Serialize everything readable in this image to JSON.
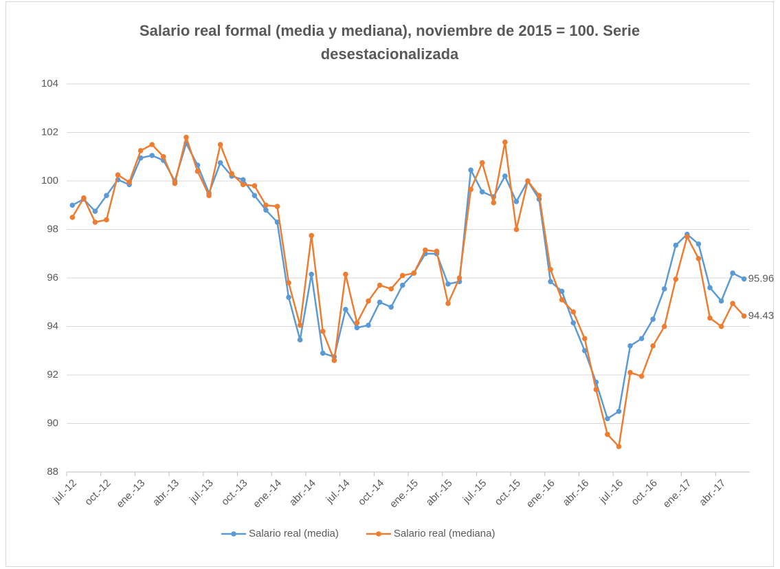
{
  "chart_data": {
    "type": "line",
    "title": "Salario real formal (media y mediana), noviembre de 2015 = 100. Serie desestacionalizada",
    "categories": [
      "jul.-12",
      null,
      null,
      "oct.-12",
      null,
      null,
      "ene.-13",
      null,
      null,
      "abr.-13",
      null,
      null,
      "jul.-13",
      null,
      null,
      "oct.-13",
      null,
      null,
      "ene.-14",
      null,
      null,
      "abr.-14",
      null,
      null,
      "jul.-14",
      null,
      null,
      "oct.-14",
      null,
      null,
      "ene.-15",
      null,
      null,
      "abr.-15",
      null,
      null,
      "jul.-15",
      null,
      null,
      "oct.-15",
      null,
      null,
      "ene.-16",
      null,
      null,
      "abr.-16",
      null,
      null,
      "jul.-16",
      null,
      null,
      "oct.-16",
      null,
      null,
      "ene.-17",
      null,
      null,
      "abr.-17",
      null,
      null
    ],
    "series": [
      {
        "name": "Salario real (media)",
        "color": "#5b9bd5",
        "values": [
          99.0,
          99.25,
          98.75,
          99.4,
          100.05,
          99.85,
          100.95,
          101.05,
          100.85,
          100.0,
          101.55,
          100.65,
          99.5,
          100.75,
          100.2,
          100.05,
          99.4,
          98.8,
          98.3,
          95.2,
          93.45,
          96.15,
          92.9,
          92.75,
          94.7,
          93.95,
          94.05,
          95.0,
          94.8,
          95.7,
          96.2,
          97.0,
          97.0,
          95.75,
          95.85,
          100.45,
          99.55,
          99.35,
          100.2,
          99.15,
          100.0,
          99.25,
          95.85,
          95.45,
          94.15,
          93.0,
          91.7,
          90.2,
          90.5,
          93.2,
          93.5,
          94.3,
          95.55,
          97.35,
          97.8,
          97.4,
          95.6,
          95.05,
          96.2,
          95.96
        ]
      },
      {
        "name": "Salario real (mediana)",
        "color": "#ed7d31",
        "values": [
          98.5,
          99.3,
          98.3,
          98.4,
          100.25,
          99.95,
          101.25,
          101.5,
          101.0,
          99.9,
          101.8,
          100.4,
          99.4,
          101.5,
          100.3,
          99.85,
          99.8,
          99.0,
          98.95,
          95.8,
          94.05,
          97.75,
          93.8,
          92.6,
          96.15,
          94.15,
          95.05,
          95.7,
          95.55,
          96.1,
          96.2,
          97.15,
          97.1,
          94.95,
          96.0,
          99.65,
          100.75,
          99.1,
          101.6,
          98.0,
          100.0,
          99.4,
          96.35,
          95.1,
          94.6,
          93.5,
          91.4,
          89.55,
          89.05,
          92.1,
          91.95,
          93.2,
          94.0,
          95.95,
          97.7,
          96.8,
          94.35,
          94.0,
          94.95,
          94.43
        ]
      }
    ],
    "ylim": [
      88,
      104
    ],
    "yticks": [
      88,
      90,
      92,
      94,
      96,
      98,
      100,
      102,
      104
    ],
    "grid": true,
    "legend": "bottom"
  }
}
